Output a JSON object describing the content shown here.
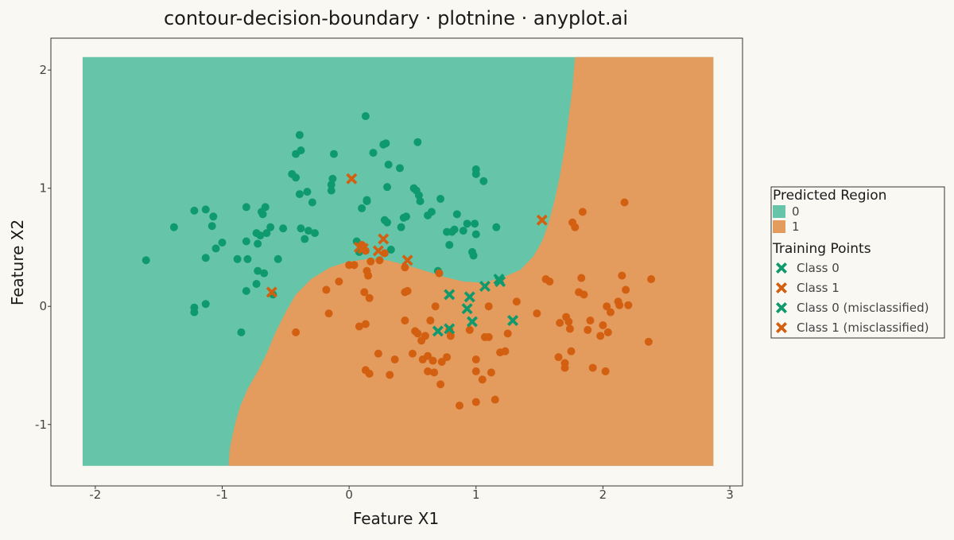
{
  "chart_data": {
    "type": "scatter",
    "title": "contour-decision-boundary · plotnine · anyplot.ai",
    "xlabel": "Feature X1",
    "ylabel": "Feature X2",
    "xlim": [
      -2.35,
      3.1
    ],
    "ylim": [
      -1.52,
      2.27
    ],
    "x_ticks": [
      -2,
      -1,
      0,
      1,
      2,
      3
    ],
    "y_ticks": [
      -1,
      0,
      1,
      2
    ],
    "x_tick_labels": [
      "-2",
      "-1",
      "0",
      "1",
      "2",
      "3"
    ],
    "y_tick_labels": [
      "-1",
      "0",
      "1",
      "2"
    ],
    "grid": false,
    "legend_position": "right",
    "colors": {
      "background": "#FAF8F3",
      "region_0": "#66C5A8",
      "region_1": "#E39B5E",
      "class_0": "#0F9A6E",
      "class_1": "#D35F11"
    },
    "regions": {
      "extent": [
        -2.1,
        2.87,
        -1.35,
        2.11
      ],
      "labels": [
        "0",
        "1"
      ],
      "boundary": [
        [
          -0.95,
          -1.35
        ],
        [
          -0.94,
          -1.2
        ],
        [
          -0.9,
          -1.0
        ],
        [
          -0.86,
          -0.85
        ],
        [
          -0.8,
          -0.7
        ],
        [
          -0.72,
          -0.55
        ],
        [
          -0.65,
          -0.4
        ],
        [
          -0.58,
          -0.22
        ],
        [
          -0.5,
          -0.05
        ],
        [
          -0.42,
          0.1
        ],
        [
          -0.3,
          0.23
        ],
        [
          -0.15,
          0.33
        ],
        [
          0.0,
          0.38
        ],
        [
          0.15,
          0.4
        ],
        [
          0.3,
          0.39
        ],
        [
          0.45,
          0.35
        ],
        [
          0.6,
          0.3
        ],
        [
          0.75,
          0.25
        ],
        [
          0.9,
          0.21
        ],
        [
          1.05,
          0.2
        ],
        [
          1.2,
          0.24
        ],
        [
          1.35,
          0.31
        ],
        [
          1.45,
          0.42
        ],
        [
          1.52,
          0.55
        ],
        [
          1.57,
          0.7
        ],
        [
          1.62,
          0.9
        ],
        [
          1.66,
          1.1
        ],
        [
          1.7,
          1.35
        ],
        [
          1.73,
          1.6
        ],
        [
          1.76,
          1.85
        ],
        [
          1.78,
          2.11
        ]
      ]
    },
    "legend": {
      "region_title": "Predicted Region",
      "region_entries": [
        {
          "label": "0",
          "color": "#66C5A8"
        },
        {
          "label": "1",
          "color": "#E39B5E"
        }
      ],
      "points_title": "Training Points",
      "point_entries": [
        {
          "label": "Class 0",
          "color": "#0F9A6E"
        },
        {
          "label": "Class 1",
          "color": "#D35F11"
        },
        {
          "label": "Class 0 (misclassified)",
          "color": "#0F9A6E"
        },
        {
          "label": "Class 1 (misclassified)",
          "color": "#D35F11"
        }
      ]
    },
    "series": [
      {
        "marker": "circle",
        "color": "#0F9A6E",
        "points": [
          [
            -1.6,
            0.39
          ],
          [
            -1.38,
            0.67
          ],
          [
            -1.22,
            0.81
          ],
          [
            -1.13,
            0.82
          ],
          [
            -1.07,
            0.76
          ],
          [
            -1.08,
            0.68
          ],
          [
            -1.05,
            0.49
          ],
          [
            -1.0,
            0.54
          ],
          [
            -1.13,
            0.41
          ],
          [
            -1.22,
            -0.01
          ],
          [
            -1.22,
            -0.05
          ],
          [
            -1.13,
            0.02
          ],
          [
            -0.88,
            0.4
          ],
          [
            -0.8,
            0.4
          ],
          [
            -0.81,
            0.84
          ],
          [
            -0.81,
            0.55
          ],
          [
            -0.73,
            0.62
          ],
          [
            -0.7,
            0.6
          ],
          [
            -0.72,
            0.53
          ],
          [
            -0.68,
            0.78
          ],
          [
            -0.69,
            0.8
          ],
          [
            -0.66,
            0.84
          ],
          [
            -0.65,
            0.62
          ],
          [
            -0.62,
            0.67
          ],
          [
            -0.72,
            0.3
          ],
          [
            -0.67,
            0.28
          ],
          [
            -0.73,
            0.19
          ],
          [
            -0.81,
            0.13
          ],
          [
            -0.56,
            0.4
          ],
          [
            -0.52,
            0.66
          ],
          [
            -0.85,
            -0.22
          ],
          [
            -0.6,
            0.1
          ],
          [
            -0.45,
            1.12
          ],
          [
            -0.42,
            1.09
          ],
          [
            -0.42,
            1.29
          ],
          [
            -0.38,
            1.32
          ],
          [
            -0.39,
            1.45
          ],
          [
            -0.39,
            0.95
          ],
          [
            -0.33,
            0.97
          ],
          [
            -0.38,
            0.66
          ],
          [
            -0.35,
            0.57
          ],
          [
            -0.32,
            0.64
          ],
          [
            -0.27,
            0.62
          ],
          [
            -0.29,
            0.88
          ],
          [
            -0.14,
            1.03
          ],
          [
            -0.13,
            1.08
          ],
          [
            -0.12,
            1.29
          ],
          [
            -0.14,
            0.98
          ],
          [
            0.13,
            1.61
          ],
          [
            0.19,
            1.3
          ],
          [
            0.27,
            1.37
          ],
          [
            0.29,
            1.38
          ],
          [
            0.31,
            1.2
          ],
          [
            0.4,
            1.17
          ],
          [
            0.54,
            1.39
          ],
          [
            0.1,
            0.83
          ],
          [
            0.14,
            0.89
          ],
          [
            0.14,
            0.9
          ],
          [
            0.3,
            1.01
          ],
          [
            0.28,
            0.73
          ],
          [
            0.3,
            0.71
          ],
          [
            0.33,
            0.48
          ],
          [
            0.41,
            0.67
          ],
          [
            0.43,
            0.75
          ],
          [
            0.45,
            0.76
          ],
          [
            0.51,
            1.0
          ],
          [
            0.53,
            0.98
          ],
          [
            0.55,
            0.94
          ],
          [
            0.56,
            0.89
          ],
          [
            0.62,
            0.77
          ],
          [
            0.65,
            0.8
          ],
          [
            0.72,
            0.91
          ],
          [
            0.77,
            0.63
          ],
          [
            0.79,
            0.52
          ],
          [
            0.81,
            0.63
          ],
          [
            0.83,
            0.65
          ],
          [
            0.85,
            0.78
          ],
          [
            0.9,
            0.64
          ],
          [
            0.93,
            0.7
          ],
          [
            0.97,
            0.46
          ],
          [
            0.98,
            0.43
          ],
          [
            0.99,
            0.7
          ],
          [
            1.0,
            0.61
          ],
          [
            1.0,
            1.16
          ],
          [
            1.0,
            1.12
          ],
          [
            1.06,
            1.06
          ],
          [
            1.16,
            0.67
          ],
          [
            0.7,
            0.3
          ],
          [
            0.06,
            0.55
          ],
          [
            0.08,
            0.46
          ]
        ]
      },
      {
        "marker": "circle",
        "color": "#D35F11",
        "points": [
          [
            -0.42,
            -0.22
          ],
          [
            -0.18,
            0.14
          ],
          [
            -0.16,
            -0.06
          ],
          [
            -0.08,
            0.21
          ],
          [
            0.04,
            0.35
          ],
          [
            0.0,
            0.35
          ],
          [
            0.1,
            0.52
          ],
          [
            0.13,
            0.47
          ],
          [
            0.14,
            0.3
          ],
          [
            0.15,
            0.26
          ],
          [
            0.17,
            0.38
          ],
          [
            0.24,
            0.39
          ],
          [
            0.28,
            0.45
          ],
          [
            0.12,
            0.12
          ],
          [
            0.16,
            0.07
          ],
          [
            0.08,
            -0.17
          ],
          [
            0.13,
            -0.15
          ],
          [
            0.13,
            -0.54
          ],
          [
            0.16,
            -0.57
          ],
          [
            0.23,
            -0.4
          ],
          [
            0.32,
            -0.58
          ],
          [
            0.36,
            -0.45
          ],
          [
            0.44,
            0.12
          ],
          [
            0.46,
            0.13
          ],
          [
            0.44,
            0.33
          ],
          [
            0.44,
            -0.12
          ],
          [
            0.5,
            -0.4
          ],
          [
            0.52,
            -0.21
          ],
          [
            0.54,
            -0.23
          ],
          [
            0.57,
            -0.29
          ],
          [
            0.58,
            -0.45
          ],
          [
            0.62,
            -0.42
          ],
          [
            0.6,
            -0.25
          ],
          [
            0.64,
            -0.12
          ],
          [
            0.66,
            -0.46
          ],
          [
            0.67,
            -0.56
          ],
          [
            0.62,
            -0.55
          ],
          [
            0.68,
            0.0
          ],
          [
            0.71,
            0.28
          ],
          [
            0.72,
            -0.66
          ],
          [
            0.73,
            -0.47
          ],
          [
            0.77,
            -0.43
          ],
          [
            0.8,
            -0.25
          ],
          [
            0.79,
            -0.2
          ],
          [
            0.87,
            -0.84
          ],
          [
            0.95,
            -0.2
          ],
          [
            1.0,
            -0.45
          ],
          [
            1.0,
            -0.55
          ],
          [
            1.0,
            -0.81
          ],
          [
            1.05,
            -0.62
          ],
          [
            1.07,
            -0.26
          ],
          [
            1.1,
            -0.26
          ],
          [
            1.1,
            0.0
          ],
          [
            1.12,
            -0.56
          ],
          [
            1.15,
            -0.79
          ],
          [
            1.19,
            -0.39
          ],
          [
            1.23,
            -0.38
          ],
          [
            1.25,
            -0.23
          ],
          [
            1.32,
            0.04
          ],
          [
            1.48,
            -0.06
          ],
          [
            1.55,
            0.23
          ],
          [
            1.58,
            0.21
          ],
          [
            1.65,
            -0.43
          ],
          [
            1.66,
            -0.14
          ],
          [
            1.7,
            -0.48
          ],
          [
            1.7,
            -0.52
          ],
          [
            1.71,
            -0.09
          ],
          [
            1.73,
            -0.13
          ],
          [
            1.74,
            -0.19
          ],
          [
            1.75,
            -0.38
          ],
          [
            1.76,
            0.71
          ],
          [
            1.78,
            0.67
          ],
          [
            1.81,
            0.12
          ],
          [
            1.83,
            0.24
          ],
          [
            1.84,
            0.8
          ],
          [
            1.85,
            0.1
          ],
          [
            1.88,
            -0.2
          ],
          [
            1.9,
            -0.12
          ],
          [
            1.92,
            -0.52
          ],
          [
            1.98,
            -0.25
          ],
          [
            2.0,
            -0.16
          ],
          [
            2.02,
            -0.55
          ],
          [
            2.03,
            0.0
          ],
          [
            2.04,
            -0.22
          ],
          [
            2.06,
            -0.05
          ],
          [
            2.12,
            0.04
          ],
          [
            2.13,
            0.01
          ],
          [
            2.15,
            0.26
          ],
          [
            2.17,
            0.88
          ],
          [
            2.18,
            0.14
          ],
          [
            2.2,
            0.01
          ],
          [
            2.36,
            -0.3
          ],
          [
            2.38,
            0.23
          ]
        ]
      },
      {
        "marker": "x",
        "color": "#0F9A6E",
        "points": [
          [
            0.79,
            0.1
          ],
          [
            0.93,
            -0.02
          ],
          [
            0.95,
            0.08
          ],
          [
            0.97,
            -0.13
          ],
          [
            0.7,
            -0.21
          ],
          [
            0.79,
            -0.19
          ],
          [
            1.07,
            0.17
          ],
          [
            1.18,
            0.23
          ],
          [
            1.19,
            0.21
          ],
          [
            1.29,
            -0.12
          ]
        ]
      },
      {
        "marker": "x",
        "color": "#D35F11",
        "points": [
          [
            0.02,
            1.08
          ],
          [
            0.08,
            0.5
          ],
          [
            0.11,
            0.49
          ],
          [
            0.23,
            0.47
          ],
          [
            0.27,
            0.57
          ],
          [
            0.46,
            0.39
          ],
          [
            -0.61,
            0.12
          ],
          [
            1.52,
            0.73
          ]
        ]
      }
    ]
  }
}
